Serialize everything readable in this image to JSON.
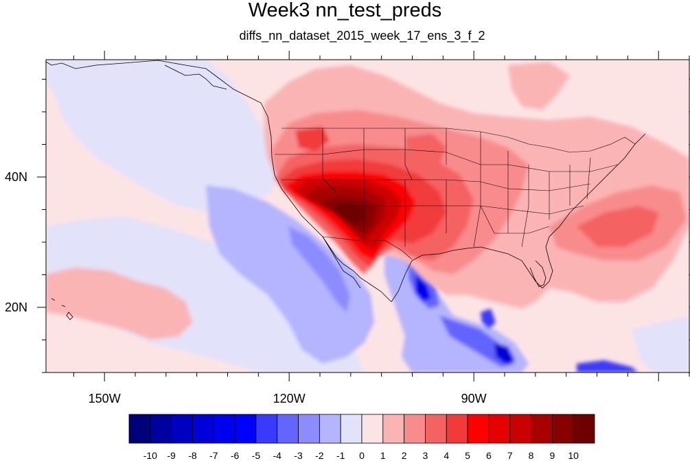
{
  "title": "Week3 nn_test_preds",
  "subtitle": "diffs_nn_dataset_2015_week_17_ens_3_f_2",
  "map": {
    "lon_ticks": [
      {
        "value": -150,
        "label": "150W"
      },
      {
        "value": -120,
        "label": "120W"
      },
      {
        "value": -90,
        "label": "90W"
      }
    ],
    "lat_ticks": [
      {
        "value": 40,
        "label": "40N"
      },
      {
        "value": 20,
        "label": "20N"
      }
    ],
    "lon_range": [
      -159.5,
      -55
    ],
    "lat_range": [
      10,
      58
    ]
  },
  "colorbar": {
    "labels": [
      "-10",
      "-9",
      "-8",
      "-7",
      "-6",
      "-5",
      "-4",
      "-3",
      "-2",
      "-1",
      "0",
      "1",
      "2",
      "3",
      "4",
      "5",
      "6",
      "7",
      "8",
      "9",
      "10"
    ],
    "colors": [
      "#00007a",
      "#0000a0",
      "#0000c0",
      "#0000d8",
      "#0000ee",
      "#0000ff",
      "#3a3aff",
      "#6464ff",
      "#8c8cff",
      "#b4b4ff",
      "#e2e2fa",
      "#fde4e4",
      "#fbb4b4",
      "#f88c8c",
      "#f56262",
      "#f23a3a",
      "#ff0000",
      "#e60000",
      "#cc0000",
      "#a80000",
      "#880000",
      "#6e0000"
    ]
  }
}
